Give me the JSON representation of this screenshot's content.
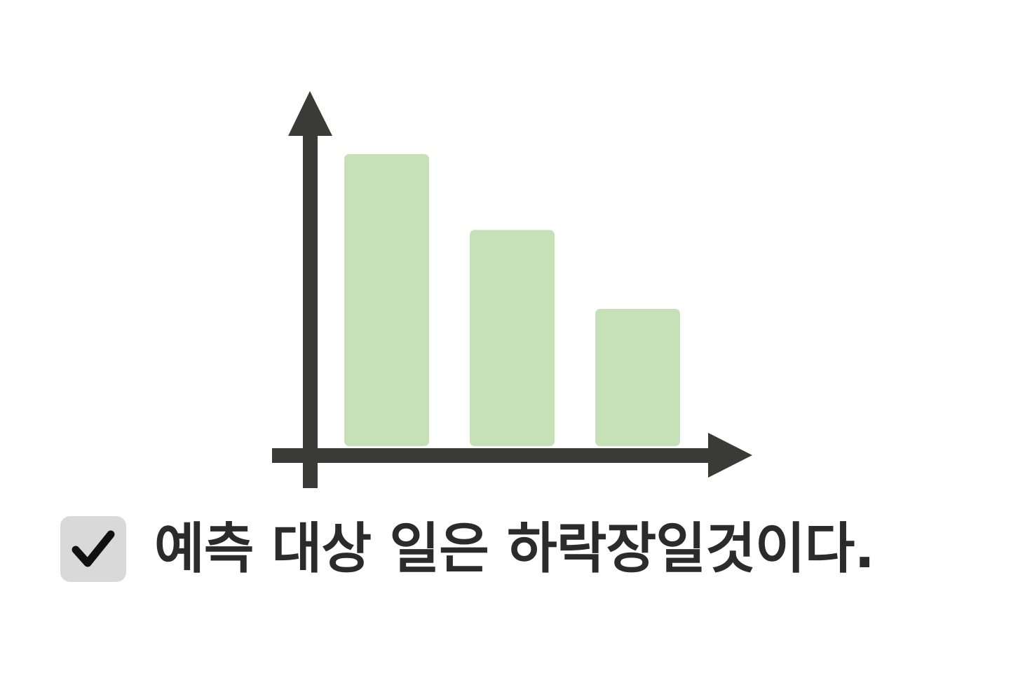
{
  "colors": {
    "axis": "#3a3a38",
    "bar": "#c6e1b7",
    "check_bg": "#d9d9d9",
    "check_mark": "#111111",
    "text": "#2b2b2b"
  },
  "chart_data": {
    "type": "bar",
    "categories": [
      "",
      "",
      ""
    ],
    "values": [
      100,
      74,
      47
    ],
    "ylim": [
      0,
      100
    ],
    "grid": false,
    "legend": "none"
  },
  "caption": {
    "checkbox_checked": true,
    "text": "예측 대상 일은 하락장일것이다."
  }
}
